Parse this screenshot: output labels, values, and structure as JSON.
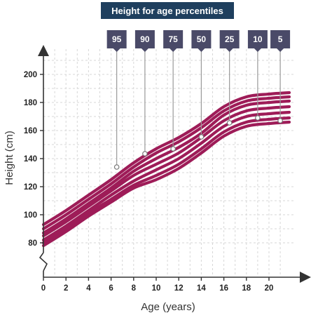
{
  "chart_data": {
    "type": "line",
    "title": "Height for age percentiles",
    "xlabel": "Age (years)",
    "ylabel": "Height (cm)",
    "x_ticks": [
      0,
      2,
      4,
      6,
      8,
      10,
      12,
      14,
      16,
      18,
      20
    ],
    "y_ticks": [
      80,
      100,
      120,
      140,
      160,
      180,
      200
    ],
    "xlim": [
      0,
      22
    ],
    "ylim": [
      70,
      210
    ],
    "grid": true,
    "line_color": "#9e1c58",
    "label_box_color": "#4a4a68",
    "series": [
      {
        "name": "95",
        "label_at": [
          6.5,
          134
        ],
        "points": [
          [
            0,
            93
          ],
          [
            2,
            103
          ],
          [
            4,
            114
          ],
          [
            6,
            125
          ],
          [
            8,
            137
          ],
          [
            10,
            147
          ],
          [
            12,
            155
          ],
          [
            14,
            165
          ],
          [
            16,
            177
          ],
          [
            18,
            184
          ],
          [
            20,
            186
          ],
          [
            21.8,
            187
          ]
        ]
      },
      {
        "name": "90",
        "label_at": [
          9,
          143.5
        ],
        "points": [
          [
            0,
            90
          ],
          [
            2,
            100
          ],
          [
            4,
            111
          ],
          [
            6,
            122
          ],
          [
            8,
            134
          ],
          [
            10,
            144
          ],
          [
            12,
            152
          ],
          [
            14,
            162
          ],
          [
            16,
            174
          ],
          [
            18,
            181
          ],
          [
            20,
            183
          ],
          [
            21.8,
            184
          ]
        ]
      },
      {
        "name": "75",
        "label_at": [
          11.5,
          147
        ],
        "points": [
          [
            0,
            87
          ],
          [
            2,
            97
          ],
          [
            4,
            108
          ],
          [
            6,
            119
          ],
          [
            8,
            131
          ],
          [
            10,
            140
          ],
          [
            12,
            148
          ],
          [
            14,
            158
          ],
          [
            16,
            171
          ],
          [
            18,
            178
          ],
          [
            20,
            180
          ],
          [
            21.8,
            181
          ]
        ]
      },
      {
        "name": "50",
        "label_at": [
          14,
          155.5
        ],
        "points": [
          [
            0,
            85
          ],
          [
            2,
            95
          ],
          [
            4,
            106
          ],
          [
            6,
            117
          ],
          [
            8,
            128
          ],
          [
            10,
            136
          ],
          [
            12,
            144
          ],
          [
            14,
            155
          ],
          [
            16,
            167
          ],
          [
            18,
            174
          ],
          [
            20,
            176
          ],
          [
            21.8,
            177
          ]
        ]
      },
      {
        "name": "25",
        "label_at": [
          16.5,
          165.5
        ],
        "points": [
          [
            0,
            82
          ],
          [
            2,
            92
          ],
          [
            4,
            103
          ],
          [
            6,
            114
          ],
          [
            8,
            124
          ],
          [
            10,
            132
          ],
          [
            12,
            140
          ],
          [
            14,
            151
          ],
          [
            16,
            163
          ],
          [
            18,
            170
          ],
          [
            20,
            172
          ],
          [
            21.8,
            173
          ]
        ]
      },
      {
        "name": "10",
        "label_at": [
          19,
          169
        ],
        "points": [
          [
            0,
            80
          ],
          [
            2,
            90
          ],
          [
            4,
            101
          ],
          [
            6,
            111
          ],
          [
            8,
            121
          ],
          [
            10,
            128
          ],
          [
            12,
            136
          ],
          [
            14,
            147
          ],
          [
            16,
            159
          ],
          [
            18,
            166
          ],
          [
            20,
            168
          ],
          [
            21.8,
            169
          ]
        ]
      },
      {
        "name": "5",
        "label_at": [
          21,
          167
        ],
        "points": [
          [
            0,
            78
          ],
          [
            2,
            88
          ],
          [
            4,
            99
          ],
          [
            6,
            109
          ],
          [
            8,
            119
          ],
          [
            10,
            125
          ],
          [
            12,
            133
          ],
          [
            14,
            144
          ],
          [
            16,
            156
          ],
          [
            18,
            163
          ],
          [
            20,
            165
          ],
          [
            21.8,
            166
          ]
        ]
      }
    ]
  }
}
